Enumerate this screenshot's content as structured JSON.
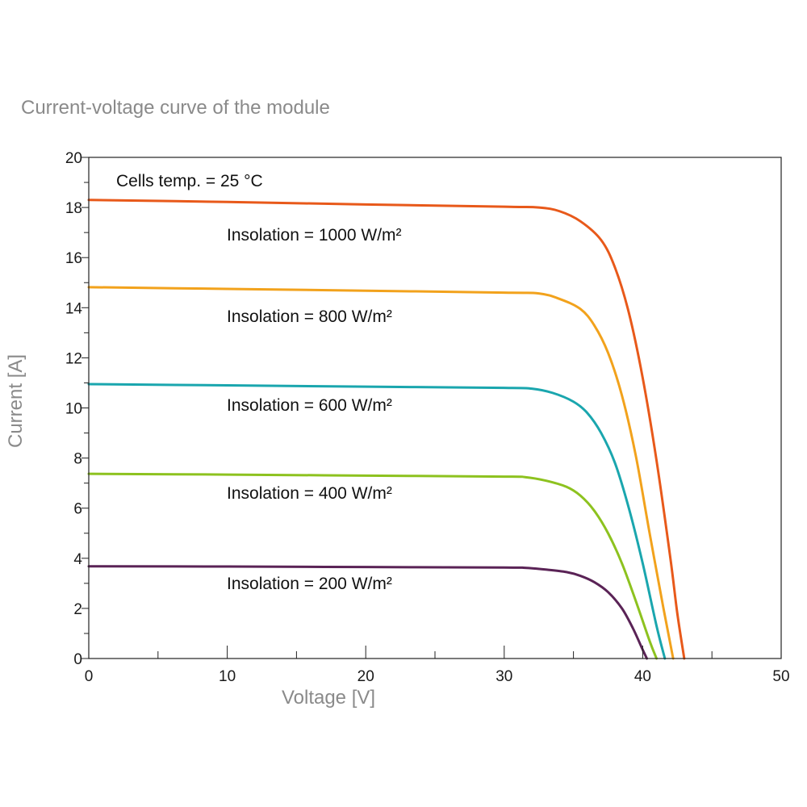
{
  "chart_data": {
    "type": "line",
    "title": "Current-voltage curve of the module",
    "xlabel": "Voltage [V]",
    "ylabel": "Current [A]",
    "xlim": [
      0,
      50
    ],
    "ylim": [
      0,
      20
    ],
    "x_ticks": [
      0,
      10,
      20,
      30,
      40,
      50
    ],
    "y_ticks": [
      0,
      2,
      4,
      6,
      8,
      10,
      12,
      14,
      16,
      18,
      20
    ],
    "x_minor_step": 5,
    "y_minor_step": 1,
    "grid": false,
    "legend": "none",
    "annotations": {
      "temperature": "Cells temp. = 25 °C"
    },
    "series": [
      {
        "label": "Insolation = 1000 W/m²",
        "color": "#e8591a",
        "points": [
          [
            0,
            18.3
          ],
          [
            10,
            18.22
          ],
          [
            20,
            18.12
          ],
          [
            30,
            18.03
          ],
          [
            32.5,
            18.0
          ],
          [
            34,
            17.85
          ],
          [
            35.5,
            17.45
          ],
          [
            37,
            16.7
          ],
          [
            38,
            15.6
          ],
          [
            39,
            13.8
          ],
          [
            40,
            11.2
          ],
          [
            41,
            7.9
          ],
          [
            42,
            4.0
          ],
          [
            42.5,
            1.8
          ],
          [
            43,
            0
          ]
        ]
      },
      {
        "label": "Insolation = 800 W/m²",
        "color": "#f2a21c",
        "points": [
          [
            0,
            14.82
          ],
          [
            10,
            14.75
          ],
          [
            20,
            14.68
          ],
          [
            30,
            14.6
          ],
          [
            32.5,
            14.57
          ],
          [
            34,
            14.35
          ],
          [
            35.5,
            13.95
          ],
          [
            36.5,
            13.3
          ],
          [
            37.5,
            12.2
          ],
          [
            38.5,
            10.5
          ],
          [
            39.5,
            8.1
          ],
          [
            40.5,
            5.0
          ],
          [
            41.5,
            2.0
          ],
          [
            42.2,
            0
          ]
        ]
      },
      {
        "label": "Insolation = 600 W/m²",
        "color": "#1aa6ae",
        "points": [
          [
            0,
            10.95
          ],
          [
            10,
            10.9
          ],
          [
            20,
            10.85
          ],
          [
            30,
            10.8
          ],
          [
            32,
            10.77
          ],
          [
            33.5,
            10.6
          ],
          [
            35,
            10.25
          ],
          [
            36,
            9.8
          ],
          [
            37,
            9.0
          ],
          [
            38,
            7.8
          ],
          [
            39,
            6.0
          ],
          [
            40,
            3.8
          ],
          [
            41,
            1.3
          ],
          [
            41.6,
            0
          ]
        ]
      },
      {
        "label": "Insolation = 400 W/m²",
        "color": "#8dc21f",
        "points": [
          [
            0,
            7.37
          ],
          [
            10,
            7.34
          ],
          [
            20,
            7.3
          ],
          [
            30,
            7.26
          ],
          [
            31.5,
            7.24
          ],
          [
            33,
            7.1
          ],
          [
            34.5,
            6.85
          ],
          [
            35.5,
            6.5
          ],
          [
            36.5,
            5.9
          ],
          [
            37.5,
            5.0
          ],
          [
            38.5,
            3.8
          ],
          [
            39.5,
            2.3
          ],
          [
            40.5,
            0.7
          ],
          [
            41,
            0
          ]
        ]
      },
      {
        "label": "Insolation = 200 W/m²",
        "color": "#5a2356",
        "points": [
          [
            0,
            3.68
          ],
          [
            10,
            3.67
          ],
          [
            20,
            3.65
          ],
          [
            30,
            3.63
          ],
          [
            31.5,
            3.62
          ],
          [
            33,
            3.55
          ],
          [
            34.5,
            3.45
          ],
          [
            35.5,
            3.3
          ],
          [
            36.5,
            3.05
          ],
          [
            37.5,
            2.65
          ],
          [
            38.5,
            2.0
          ],
          [
            39.3,
            1.2
          ],
          [
            40,
            0.35
          ],
          [
            40.3,
            0
          ]
        ]
      }
    ]
  }
}
